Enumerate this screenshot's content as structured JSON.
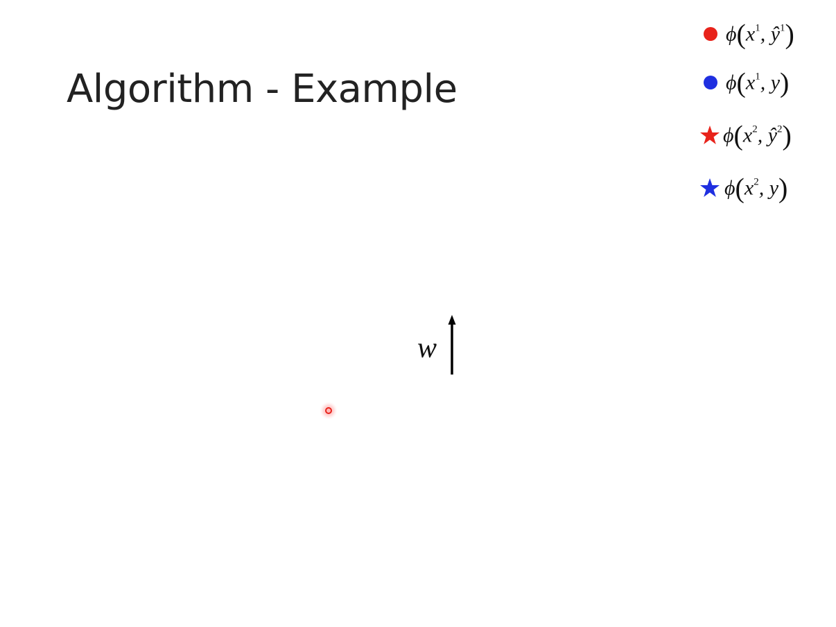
{
  "slide": {
    "title": "Algorithm - Example"
  },
  "legend": {
    "items": [
      {
        "marker": "circle",
        "color": "#e8231b",
        "label_func": "ϕ",
        "x": "x",
        "x_sup": "1",
        "y": "ŷ",
        "y_sup": "1"
      },
      {
        "marker": "circle",
        "color": "#1f2fe0",
        "label_func": "ϕ",
        "x": "x",
        "x_sup": "1",
        "y": "y",
        "y_sup": ""
      },
      {
        "marker": "star",
        "color": "#e8231b",
        "label_func": "ϕ",
        "x": "x",
        "x_sup": "2",
        "y": "ŷ",
        "y_sup": "2"
      },
      {
        "marker": "star",
        "color": "#1f2fe0",
        "label_func": "ϕ",
        "x": "x",
        "x_sup": "2",
        "y": "y",
        "y_sup": ""
      }
    ]
  },
  "vector": {
    "label": "w",
    "color": "#000000",
    "direction": "up"
  },
  "pointer": {
    "color": "#e8231b",
    "icon": "laser-pointer-icon"
  }
}
